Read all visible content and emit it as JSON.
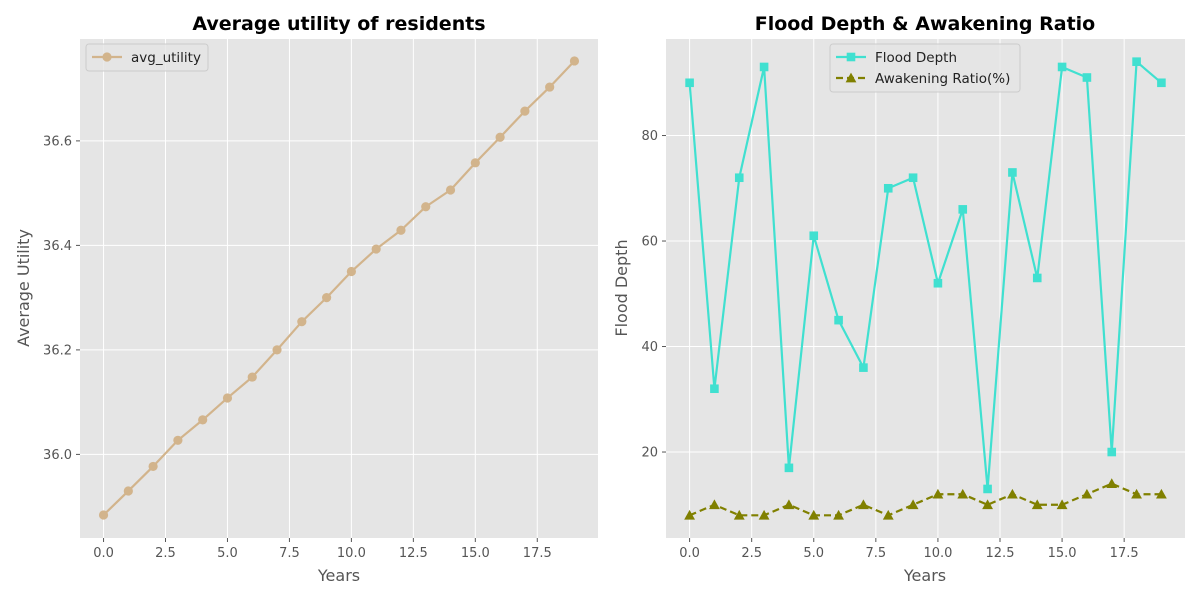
{
  "chart_data": [
    {
      "type": "line",
      "title": "Average utility of residents",
      "xlabel": "Years",
      "ylabel": "Average Utility",
      "xlim": [
        -0.95,
        19.95
      ],
      "ylim": [
        35.84,
        36.795
      ],
      "xticks": [
        "0.0",
        "2.5",
        "5.0",
        "7.5",
        "10.0",
        "12.5",
        "15.0",
        "17.5"
      ],
      "yticks": [
        "36.0",
        "36.2",
        "36.4",
        "36.6"
      ],
      "grid": true,
      "legend_position": "upper-left",
      "x": [
        0,
        1,
        2,
        3,
        4,
        5,
        6,
        7,
        8,
        9,
        10,
        11,
        12,
        13,
        14,
        15,
        16,
        17,
        18,
        19
      ],
      "series": [
        {
          "name": "avg_utility",
          "color": "#d2b48c",
          "marker": "circle",
          "linestyle": "solid",
          "values": [
            35.884,
            35.93,
            35.977,
            36.027,
            36.066,
            36.108,
            36.148,
            36.2,
            36.254,
            36.3,
            36.35,
            36.393,
            36.429,
            36.474,
            36.506,
            36.558,
            36.607,
            36.657,
            36.703,
            36.753
          ]
        }
      ]
    },
    {
      "type": "line",
      "title": "Flood Depth & Awakening Ratio",
      "xlabel": "Years",
      "ylabel": "Flood Depth",
      "xlim": [
        -0.95,
        19.95
      ],
      "ylim": [
        3.7,
        98.3
      ],
      "xticks": [
        "0.0",
        "2.5",
        "5.0",
        "7.5",
        "10.0",
        "12.5",
        "15.0",
        "17.5"
      ],
      "yticks": [
        "20",
        "40",
        "60",
        "80"
      ],
      "grid": true,
      "legend_position": "upper-center",
      "x": [
        0,
        1,
        2,
        3,
        4,
        5,
        6,
        7,
        8,
        9,
        10,
        11,
        12,
        13,
        14,
        15,
        16,
        17,
        18,
        19
      ],
      "series": [
        {
          "name": "Flood Depth",
          "color": "#40e0d0",
          "marker": "square",
          "linestyle": "solid",
          "values": [
            90,
            32,
            72,
            93,
            17,
            61,
            45,
            36,
            70,
            72,
            52,
            66,
            13,
            73,
            53,
            93,
            91,
            20,
            94,
            90
          ]
        },
        {
          "name": "Awakening Ratio(%)",
          "color": "#808000",
          "marker": "triangle",
          "linestyle": "dashed",
          "values": [
            8,
            10,
            8,
            8,
            10,
            8,
            8,
            10,
            8,
            10,
            12,
            12,
            10,
            12,
            10,
            10,
            12,
            14,
            12,
            12
          ]
        }
      ]
    }
  ]
}
